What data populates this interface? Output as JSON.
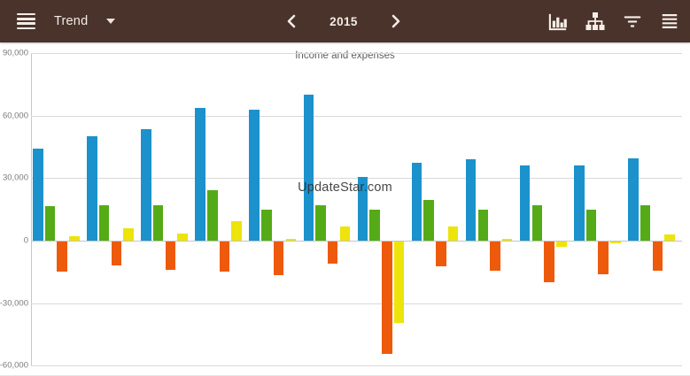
{
  "header": {
    "view_label": "Trend",
    "year": "2015"
  },
  "chart_data": {
    "type": "bar",
    "title": "Income and expenses",
    "watermark": "UpdateStar.com",
    "grid": true,
    "legend": false,
    "num_groups": 12,
    "ylim": [
      -60000,
      90000
    ],
    "y_tick_values": [
      90000,
      60000,
      30000,
      0,
      -30000,
      -60000
    ],
    "y_ticks": [
      "90,000",
      "60,000",
      "30,000",
      "0",
      "-30,000",
      "-60,000"
    ],
    "x_tick_labels_visible": false,
    "series": [
      {
        "name": "blue",
        "color": "#1b92cc",
        "values": [
          44000,
          50000,
          53500,
          63500,
          63000,
          70000,
          30500,
          37500,
          39000,
          36000,
          36000,
          39500
        ]
      },
      {
        "name": "green",
        "color": "#55ab17",
        "values": [
          16500,
          17000,
          17000,
          24000,
          15000,
          17000,
          15000,
          19500,
          15000,
          17000,
          15000,
          17000
        ]
      },
      {
        "name": "orange",
        "color": "#ee5a0b",
        "values": [
          -14500,
          -11500,
          -13500,
          -14500,
          -16000,
          -10500,
          -54000,
          -12000,
          -14000,
          -19500,
          -15500,
          -14000
        ]
      },
      {
        "name": "yellow",
        "color": "#ece40b",
        "values": [
          2000,
          6000,
          3500,
          9500,
          1000,
          7000,
          -39000,
          7000,
          1000,
          -2500,
          -1000,
          3000
        ]
      }
    ]
  }
}
